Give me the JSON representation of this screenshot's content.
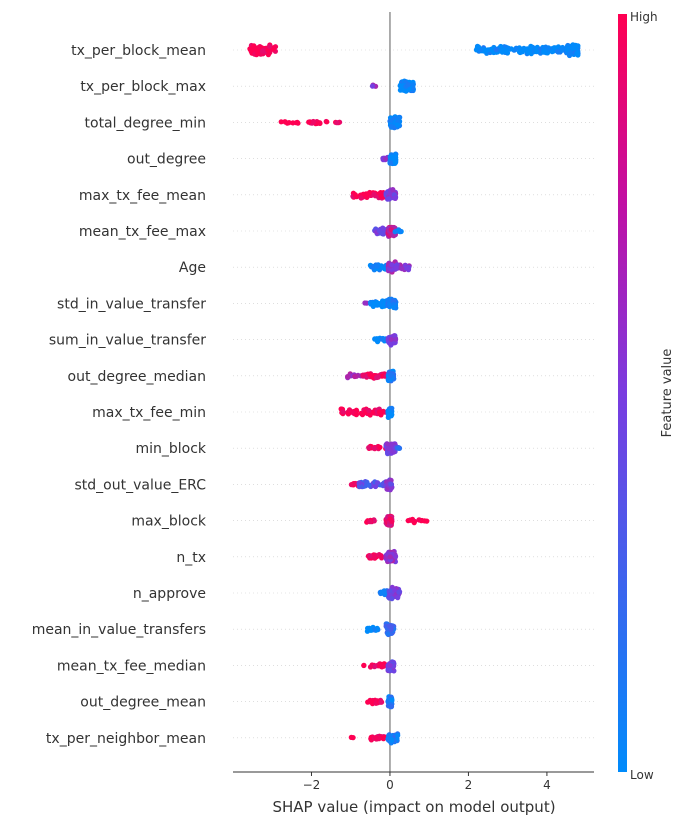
{
  "chart_data": {
    "type": "scatter",
    "subtype": "shap-beeswarm-summary",
    "xlabel": "SHAP value (impact on model output)",
    "xlim": [
      -4.0,
      5.2
    ],
    "xticks": [
      -2,
      0,
      2,
      4
    ],
    "xtick_labels": [
      "−2",
      "0",
      "2",
      "4"
    ],
    "colorbar": {
      "label": "Feature value",
      "high_label": "High",
      "low_label": "Low",
      "low_color": "#008bfb",
      "high_color": "#ff0052"
    },
    "colors": {
      "low": "#008bfb",
      "mid": "#7a3ce0",
      "high": "#ff0052",
      "zero_line": "#999999",
      "grid": "#cccccc"
    },
    "features": [
      {
        "name": "tx_per_block_mean",
        "clusters": [
          {
            "from": -3.6,
            "to": -2.9,
            "n": 70,
            "fv": 1.0,
            "spread": 1.0
          },
          {
            "from": 2.2,
            "to": 4.8,
            "n": 150,
            "fv": 0.0,
            "spread": 0.7
          },
          {
            "from": 4.5,
            "to": 4.8,
            "n": 90,
            "fv": 0.0,
            "spread": 1.0
          }
        ]
      },
      {
        "name": "tx_per_block_max",
        "clusters": [
          {
            "from": -0.45,
            "to": -0.35,
            "n": 3,
            "fv": 0.6,
            "spread": 0.2
          },
          {
            "from": 0.25,
            "to": 0.6,
            "n": 120,
            "fv": 0.0,
            "spread": 1.0
          }
        ]
      },
      {
        "name": "total_degree_min",
        "clusters": [
          {
            "from": -2.8,
            "to": -1.2,
            "n": 30,
            "fv": 1.0,
            "spread": 0.25
          },
          {
            "from": 0.0,
            "to": 0.25,
            "n": 90,
            "fv": 0.0,
            "spread": 1.0
          }
        ]
      },
      {
        "name": "out_degree",
        "clusters": [
          {
            "from": -0.2,
            "to": -0.05,
            "n": 10,
            "fv": 0.55,
            "spread": 0.4
          },
          {
            "from": 0.0,
            "to": 0.15,
            "n": 90,
            "fv": 0.0,
            "spread": 1.0
          }
        ]
      },
      {
        "name": "max_tx_fee_mean",
        "clusters": [
          {
            "from": -0.95,
            "to": -0.1,
            "n": 45,
            "fv": 1.0,
            "spread": 0.6
          },
          {
            "from": -0.1,
            "to": 0.15,
            "n": 60,
            "fv": 0.5,
            "spread": 1.0
          }
        ]
      },
      {
        "name": "mean_tx_fee_max",
        "clusters": [
          {
            "from": -0.4,
            "to": 0.0,
            "n": 30,
            "fv": 0.45,
            "spread": 0.6
          },
          {
            "from": -0.05,
            "to": 0.15,
            "n": 60,
            "fv": 0.75,
            "spread": 1.0
          },
          {
            "from": 0.1,
            "to": 0.3,
            "n": 8,
            "fv": 0.0,
            "spread": 0.3
          }
        ]
      },
      {
        "name": "Age",
        "clusters": [
          {
            "from": -0.5,
            "to": -0.05,
            "n": 35,
            "fv": 0.0,
            "spread": 0.5
          },
          {
            "from": -0.05,
            "to": 0.15,
            "n": 70,
            "fv": 0.6,
            "spread": 1.0
          },
          {
            "from": 0.15,
            "to": 0.5,
            "n": 25,
            "fv": 0.55,
            "spread": 0.5
          }
        ]
      },
      {
        "name": "std_in_value_transfer",
        "clusters": [
          {
            "from": -0.65,
            "to": -0.55,
            "n": 2,
            "fv": 0.7,
            "spread": 0.1
          },
          {
            "from": -0.5,
            "to": 0.0,
            "n": 40,
            "fv": 0.0,
            "spread": 0.6
          },
          {
            "from": -0.05,
            "to": 0.15,
            "n": 60,
            "fv": 0.1,
            "spread": 1.0
          }
        ]
      },
      {
        "name": "sum_in_value_transfer",
        "clusters": [
          {
            "from": -0.4,
            "to": -0.05,
            "n": 20,
            "fv": 0.0,
            "spread": 0.4
          },
          {
            "from": -0.05,
            "to": 0.15,
            "n": 60,
            "fv": 0.5,
            "spread": 1.0
          }
        ]
      },
      {
        "name": "out_degree_median",
        "clusters": [
          {
            "from": -1.1,
            "to": -0.7,
            "n": 10,
            "fv": 0.65,
            "spread": 0.4
          },
          {
            "from": -0.7,
            "to": -0.05,
            "n": 40,
            "fv": 0.9,
            "spread": 0.5
          },
          {
            "from": -0.05,
            "to": 0.1,
            "n": 50,
            "fv": 0.1,
            "spread": 1.0
          }
        ]
      },
      {
        "name": "max_tx_fee_min",
        "clusters": [
          {
            "from": -1.25,
            "to": -0.1,
            "n": 70,
            "fv": 1.0,
            "spread": 0.6
          },
          {
            "from": -0.05,
            "to": 0.05,
            "n": 40,
            "fv": 0.0,
            "spread": 1.0
          }
        ]
      },
      {
        "name": "min_block",
        "clusters": [
          {
            "from": -0.55,
            "to": -0.1,
            "n": 15,
            "fv": 1.0,
            "spread": 0.4
          },
          {
            "from": -0.1,
            "to": 0.15,
            "n": 60,
            "fv": 0.5,
            "spread": 1.0
          },
          {
            "from": 0.15,
            "to": 0.25,
            "n": 6,
            "fv": 0.2,
            "spread": 0.3
          }
        ]
      },
      {
        "name": "std_out_value_ERC",
        "clusters": [
          {
            "from": -1.05,
            "to": -0.8,
            "n": 8,
            "fv": 1.0,
            "spread": 0.3
          },
          {
            "from": -0.8,
            "to": -0.1,
            "n": 35,
            "fv": 0.35,
            "spread": 0.5
          },
          {
            "from": -0.1,
            "to": 0.05,
            "n": 40,
            "fv": 0.5,
            "spread": 1.0
          }
        ]
      },
      {
        "name": "max_block",
        "clusters": [
          {
            "from": -0.6,
            "to": -0.35,
            "n": 8,
            "fv": 1.0,
            "spread": 0.3
          },
          {
            "from": -0.1,
            "to": 0.05,
            "n": 60,
            "fv": 0.9,
            "spread": 1.0
          },
          {
            "from": 0.45,
            "to": 0.95,
            "n": 12,
            "fv": 1.0,
            "spread": 0.35
          }
        ]
      },
      {
        "name": "n_tx",
        "clusters": [
          {
            "from": -0.55,
            "to": -0.1,
            "n": 20,
            "fv": 1.0,
            "spread": 0.4
          },
          {
            "from": -0.1,
            "to": 0.15,
            "n": 60,
            "fv": 0.6,
            "spread": 1.0
          }
        ]
      },
      {
        "name": "n_approve",
        "clusters": [
          {
            "from": -0.25,
            "to": -0.05,
            "n": 15,
            "fv": 0.1,
            "spread": 0.4
          },
          {
            "from": -0.05,
            "to": 0.25,
            "n": 50,
            "fv": 0.5,
            "spread": 1.0
          }
        ]
      },
      {
        "name": "mean_in_value_transfers",
        "clusters": [
          {
            "from": -0.6,
            "to": -0.3,
            "n": 12,
            "fv": 0.0,
            "spread": 0.4
          },
          {
            "from": -0.1,
            "to": 0.1,
            "n": 50,
            "fv": 0.2,
            "spread": 1.0
          }
        ]
      },
      {
        "name": "mean_tx_fee_median",
        "clusters": [
          {
            "from": -0.7,
            "to": -0.6,
            "n": 2,
            "fv": 1.0,
            "spread": 0.1
          },
          {
            "from": -0.5,
            "to": -0.05,
            "n": 25,
            "fv": 0.95,
            "spread": 0.4
          },
          {
            "from": -0.05,
            "to": 0.1,
            "n": 50,
            "fv": 0.45,
            "spread": 1.0
          }
        ]
      },
      {
        "name": "out_degree_mean",
        "clusters": [
          {
            "from": -0.6,
            "to": -0.15,
            "n": 20,
            "fv": 1.0,
            "spread": 0.4
          },
          {
            "from": -0.05,
            "to": 0.05,
            "n": 50,
            "fv": 0.1,
            "spread": 1.0
          }
        ]
      },
      {
        "name": "tx_per_neighbor_mean",
        "clusters": [
          {
            "from": -1.0,
            "to": -0.9,
            "n": 2,
            "fv": 1.0,
            "spread": 0.1
          },
          {
            "from": -0.5,
            "to": -0.05,
            "n": 25,
            "fv": 0.95,
            "spread": 0.4
          },
          {
            "from": -0.05,
            "to": 0.2,
            "n": 45,
            "fv": 0.1,
            "spread": 1.0
          }
        ]
      }
    ]
  }
}
